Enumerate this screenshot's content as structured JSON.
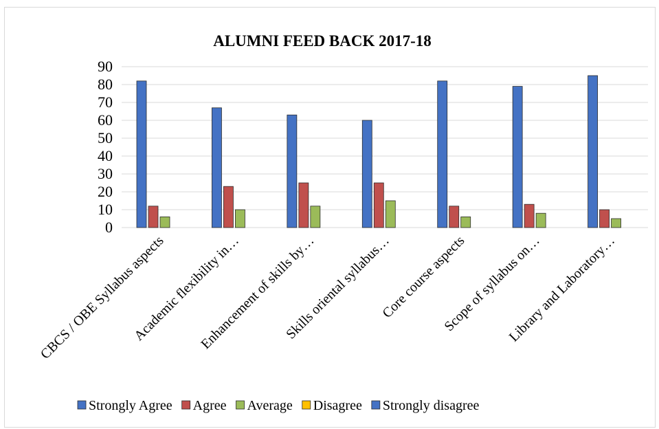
{
  "chart_data": {
    "type": "bar",
    "title": "ALUMNI FEED BACK 2017-18",
    "xlabel": "",
    "ylabel": "",
    "ylim": [
      0,
      90
    ],
    "yticks": [
      0,
      10,
      20,
      30,
      40,
      50,
      60,
      70,
      80,
      90
    ],
    "grid": true,
    "legend_position": "bottom",
    "categories": [
      "CBCS / OBE Syllabus aspects",
      "Academic flexibility in…",
      "Enhancement of skills by…",
      "Skills oriental syllabus…",
      "Core course aspects",
      "Scope of syllabus on…",
      "Library and Laboratory…"
    ],
    "series": [
      {
        "name": "Strongly Agree",
        "color": "#4472c4",
        "values": [
          82,
          67,
          63,
          60,
          82,
          79,
          85
        ]
      },
      {
        "name": "Agree",
        "color": "#c0504d",
        "values": [
          12,
          23,
          25,
          25,
          12,
          13,
          10
        ]
      },
      {
        "name": "Average",
        "color": "#9bbb59",
        "values": [
          6,
          10,
          12,
          15,
          6,
          8,
          5
        ]
      },
      {
        "name": "Disagree",
        "color": "#ffc000",
        "values": [
          0,
          0,
          0,
          0,
          0,
          0,
          0
        ]
      },
      {
        "name": "Strongly disagree",
        "color": "#4472c4",
        "values": [
          0,
          0,
          0,
          0,
          0,
          0,
          0
        ]
      }
    ]
  }
}
